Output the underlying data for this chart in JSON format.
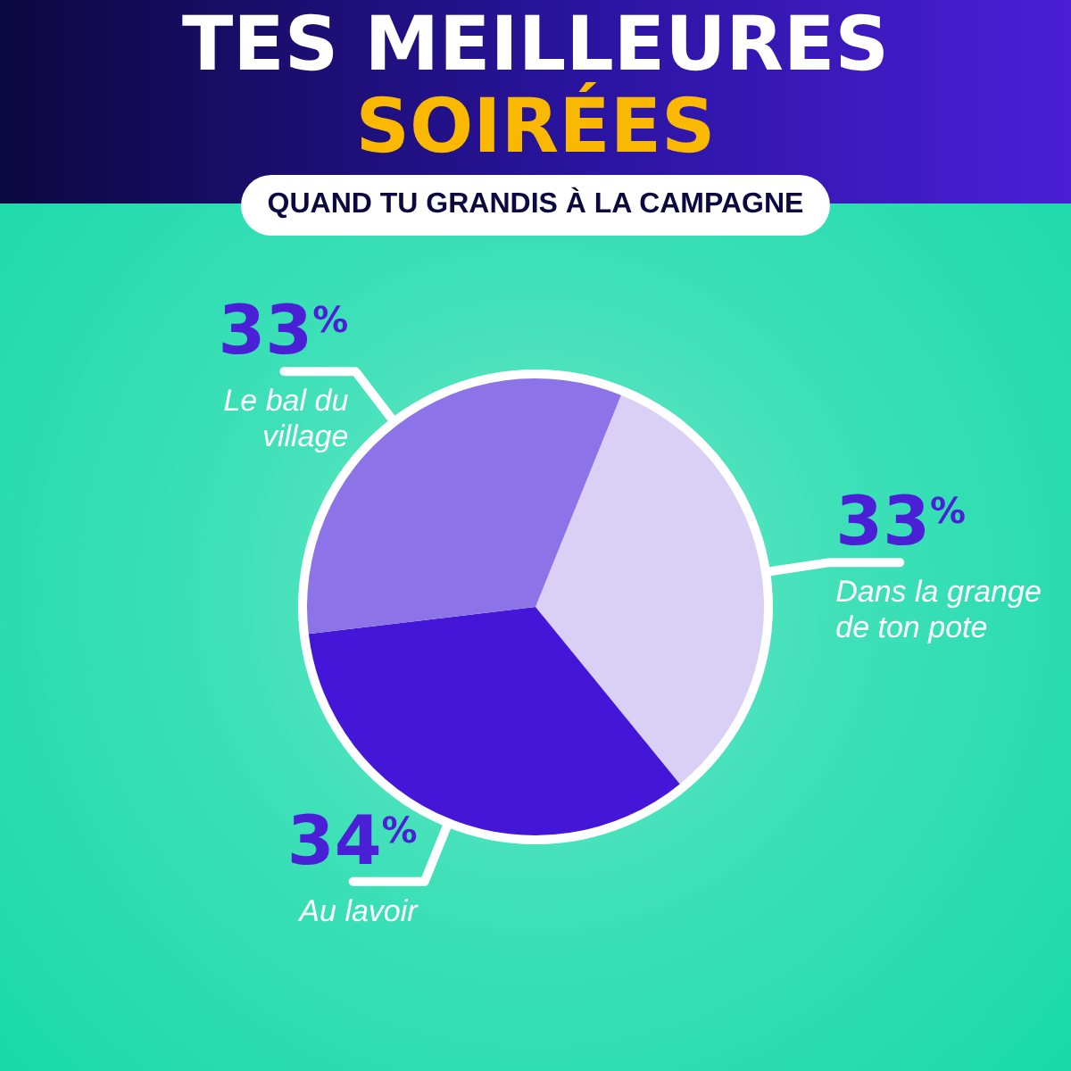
{
  "chart_data": {
    "type": "pie",
    "title": "TES MEILLEURES SOIRÉES",
    "subtitle": "QUAND TU GRANDIS À LA CAMPAGNE",
    "categories": [
      "Dans la grange de ton pote",
      "Au lavoir",
      "Le bal du village"
    ],
    "values": [
      33,
      34,
      33
    ],
    "colors": [
      "#dad0f6",
      "#4416d8",
      "#8c74e8"
    ],
    "value_labels": [
      "33$^{%}$",
      "34$^{%}$",
      "33$^{%}$"
    ]
  }
}
